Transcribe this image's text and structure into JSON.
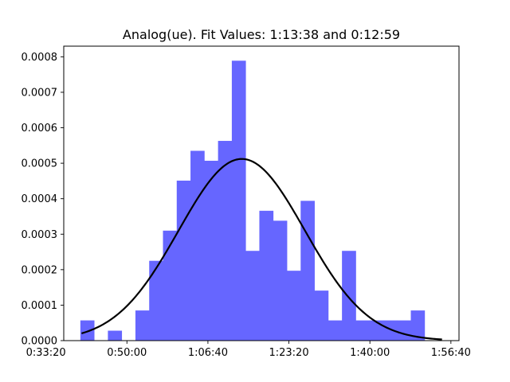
{
  "chart_data": {
    "type": "bar",
    "title": "Analog(ue). Fit Values: 1:13:38 and 0:12:59",
    "xlabel": "",
    "ylabel": "",
    "colors": {
      "bars": "#6666ff",
      "curve": "#000000"
    },
    "x_unit": "seconds",
    "xlim": [
      2220,
      7100
    ],
    "ylim": [
      0,
      0.00083
    ],
    "x_ticks": [
      {
        "value": 2000,
        "label": "0:33:20"
      },
      {
        "value": 3000,
        "label": "0:50:00"
      },
      {
        "value": 4000,
        "label": "1:06:40"
      },
      {
        "value": 5000,
        "label": "1:23:20"
      },
      {
        "value": 6000,
        "label": "1:40:00"
      },
      {
        "value": 7000,
        "label": "1:56:40"
      }
    ],
    "y_ticks": [
      "0.0000",
      "0.0001",
      "0.0002",
      "0.0003",
      "0.0004",
      "0.0005",
      "0.0006",
      "0.0007",
      "0.0008"
    ],
    "y_tick_values": [
      0,
      0.0001,
      0.0002,
      0.0003,
      0.0004,
      0.0005,
      0.0006,
      0.0007,
      0.0008
    ],
    "bins": {
      "edges": [
        2425,
        2595,
        2765,
        2935,
        3105,
        3275,
        3445,
        3615,
        3785,
        3955,
        4125,
        4295,
        4465,
        4635,
        4805,
        4975,
        5145,
        5315,
        5485,
        5655,
        5825,
        5995,
        6165,
        6335,
        6505,
        6675
      ],
      "heights": [
        5.7e-05,
        0.0,
        2.8e-05,
        0.0,
        8.5e-05,
        0.000225,
        0.00031,
        0.000451,
        0.000535,
        0.000507,
        0.000563,
        0.000789,
        0.000253,
        0.000366,
        0.000338,
        0.000197,
        0.000394,
        0.000141,
        5.7e-05,
        0.000253,
        5.7e-05,
        5.7e-05,
        5.7e-05,
        5.7e-05,
        8.5e-05
      ]
    },
    "fit": {
      "mean": "1:13:38",
      "std": "0:12:59",
      "mean_seconds": 4418,
      "std_seconds": 779,
      "x_range": [
        2440,
        6890
      ]
    }
  }
}
